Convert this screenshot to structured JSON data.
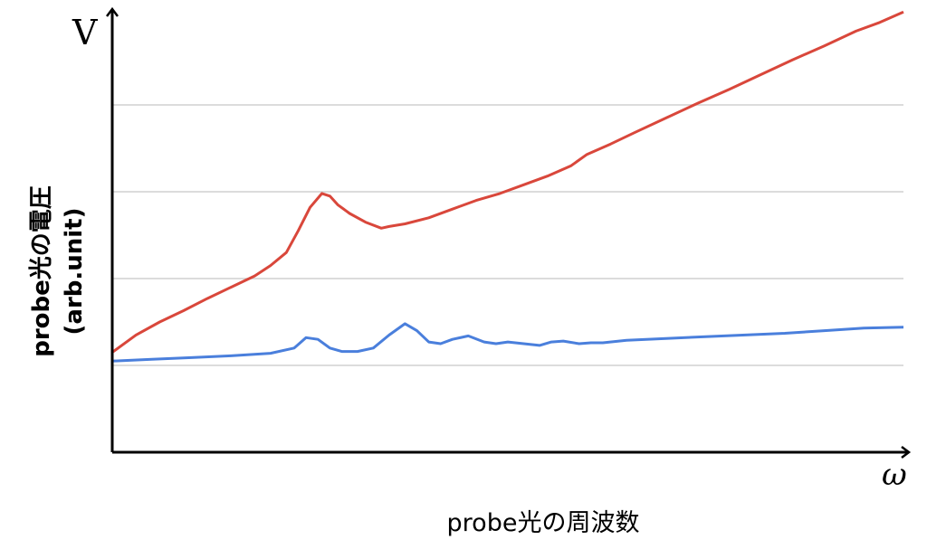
{
  "chart_data": {
    "type": "line",
    "title": "",
    "y_unit_letter": "V",
    "x_unit_letter": "ω",
    "xlabel": "probe光の周波数",
    "ylabel_line1": "probe光の電圧",
    "ylabel_line2": "(arb.unit)",
    "grid": true,
    "ylim": [
      0,
      5
    ],
    "xlim": [
      0,
      100
    ],
    "series": [
      {
        "color": "#d9473b",
        "x": [
          0,
          3,
          6,
          9,
          12,
          15,
          18,
          20,
          22,
          23.5,
          25,
          26.5,
          27.5,
          28.5,
          30,
          32,
          34,
          35,
          37,
          40,
          43,
          46,
          49,
          52,
          55,
          58,
          60,
          63,
          66,
          70,
          74,
          78,
          82,
          86,
          90,
          94,
          97,
          100
        ],
        "values": [
          1.15,
          1.35,
          1.5,
          1.63,
          1.77,
          1.9,
          2.03,
          2.15,
          2.3,
          2.55,
          2.82,
          2.98,
          2.95,
          2.85,
          2.75,
          2.65,
          2.58,
          2.6,
          2.63,
          2.7,
          2.8,
          2.9,
          2.98,
          3.08,
          3.18,
          3.3,
          3.43,
          3.55,
          3.68,
          3.85,
          4.02,
          4.18,
          4.35,
          4.52,
          4.68,
          4.85,
          4.95,
          5.07
        ]
      },
      {
        "color": "#4a7fdc",
        "x": [
          0,
          5,
          10,
          15,
          20,
          23,
          24.5,
          26,
          27.5,
          29,
          31,
          33,
          35,
          37,
          38.5,
          40,
          41.5,
          43,
          45,
          47,
          48.5,
          50,
          52,
          54,
          55.5,
          57,
          59,
          60.5,
          62,
          65,
          70,
          75,
          80,
          85,
          90,
          95,
          100
        ],
        "values": [
          1.05,
          1.07,
          1.09,
          1.11,
          1.14,
          1.2,
          1.32,
          1.3,
          1.2,
          1.16,
          1.16,
          1.2,
          1.35,
          1.48,
          1.4,
          1.27,
          1.25,
          1.3,
          1.34,
          1.27,
          1.25,
          1.27,
          1.25,
          1.23,
          1.27,
          1.28,
          1.25,
          1.26,
          1.26,
          1.29,
          1.31,
          1.33,
          1.35,
          1.37,
          1.4,
          1.43,
          1.44
        ]
      }
    ]
  }
}
